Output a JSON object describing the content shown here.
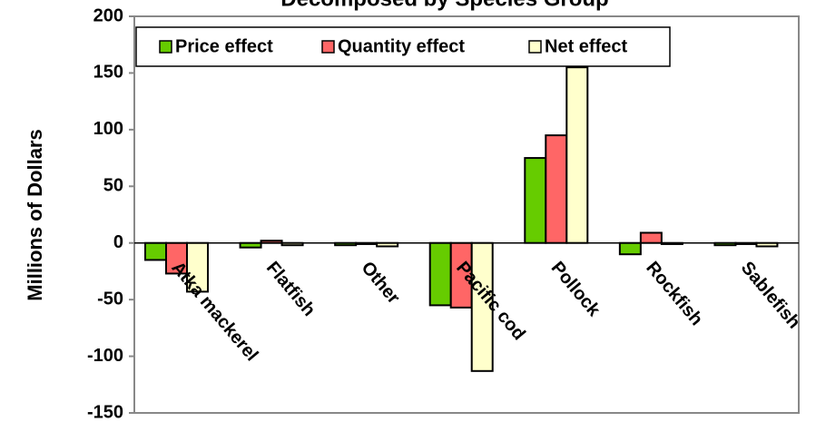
{
  "chart_data": {
    "type": "bar",
    "title": "Decomposed by Species Group",
    "y_label": "Millions of Dollars",
    "categories": [
      "Atka mackerel",
      "Flatfish",
      "Other",
      "Pacific cod",
      "Pollock",
      "Rockfish",
      "Sablefish"
    ],
    "series": [
      {
        "name": "Price effect",
        "color": "#66cc00",
        "values": [
          -15,
          -4,
          -2,
          -55,
          75,
          -10,
          -2
        ]
      },
      {
        "name": "Quantity effect",
        "color": "#ff6666",
        "values": [
          -27,
          2,
          -1,
          -57,
          95,
          9,
          -1
        ]
      },
      {
        "name": "Net effect",
        "color": "#ffffcc",
        "values": [
          -43,
          -2,
          -3,
          -113,
          155,
          -1,
          -3
        ]
      }
    ],
    "ylim": [
      -150,
      200
    ],
    "yticks": [
      -150,
      -100,
      -50,
      0,
      50,
      100,
      150,
      200
    ],
    "grid": false,
    "legend": "top-left"
  }
}
